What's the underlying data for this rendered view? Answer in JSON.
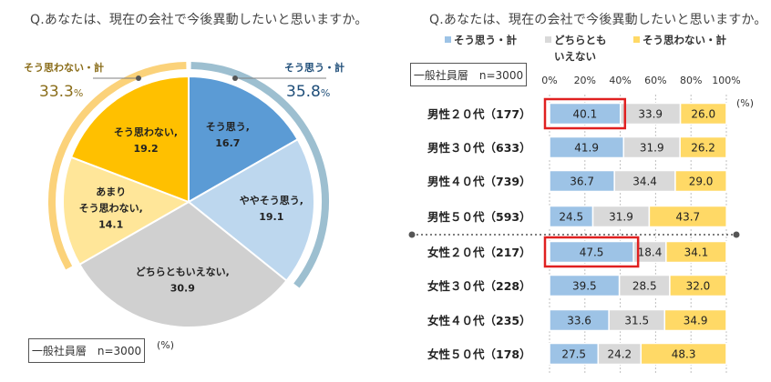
{
  "chart_data": [
    {
      "type": "pie",
      "title": "Q.あなたは、現在の会社で今後異動したいと思いますか。",
      "unit": "(%)",
      "sample": "一般社員層　n=3000",
      "slices": [
        {
          "label": "そう思う,",
          "value": 16.7,
          "value_text": "16.7",
          "color": "#5b9bd5"
        },
        {
          "label": "ややそう思う,",
          "value": 19.1,
          "value_text": "19.1",
          "color": "#bdd7ee"
        },
        {
          "label": "どちらともいえない,",
          "value": 30.9,
          "value_text": "30.9",
          "color": "#d0d0d0"
        },
        {
          "label": "あまり そう思わない,",
          "value": 14.1,
          "value_text": "14.1",
          "color": "#ffe699"
        },
        {
          "label": "そう思わない,",
          "value": 19.2,
          "value_text": "19.2",
          "color": "#ffc000"
        }
      ],
      "groups": [
        {
          "label": "そう思う・計",
          "value": "35.8",
          "unit": "%",
          "color": "#1f4e79",
          "arc_color": "#9dbfd0"
        },
        {
          "label": "そう思わない・計",
          "value": "33.3",
          "unit": "%",
          "color": "#8a6d1a",
          "arc_color": "#fbd27a"
        }
      ]
    },
    {
      "type": "bar",
      "stacked": true,
      "orientation": "horizontal",
      "title": "Q.あなたは、現在の会社で今後異動したいと思いますか。",
      "unit": "(%)",
      "sample": "一般社員層　n=3000",
      "xlim": [
        0,
        100
      ],
      "xticks": [
        "0%",
        "20%",
        "40%",
        "60%",
        "80%",
        "100%"
      ],
      "legend": [
        {
          "label": "そう思う・計",
          "color": "#9dc3e6"
        },
        {
          "label": "どちらとも",
          "label2": "いえない",
          "color": "#d9d9d9"
        },
        {
          "label": "そう思わない・計",
          "color": "#ffd966"
        }
      ],
      "categories": [
        "男性２０代（177）",
        "男性３０代（633）",
        "男性４０代（739）",
        "男性５０代（593）",
        "女性２０代（217）",
        "女性３０代（228）",
        "女性４０代（235）",
        "女性５０代（178）"
      ],
      "series": [
        {
          "name": "そう思う・計",
          "color": "#9dc3e6",
          "values": [
            40.1,
            41.9,
            36.7,
            24.5,
            47.5,
            39.5,
            33.6,
            27.5
          ]
        },
        {
          "name": "どちらともいえない",
          "color": "#d9d9d9",
          "values": [
            33.9,
            31.9,
            34.4,
            31.9,
            18.4,
            28.5,
            31.5,
            24.2
          ]
        },
        {
          "name": "そう思わない・計",
          "color": "#ffd966",
          "values": [
            26.0,
            26.2,
            29.0,
            43.7,
            34.1,
            32.0,
            34.9,
            48.3
          ]
        }
      ],
      "highlighted": [
        0,
        4
      ],
      "highlight_color": "#e02020"
    }
  ]
}
